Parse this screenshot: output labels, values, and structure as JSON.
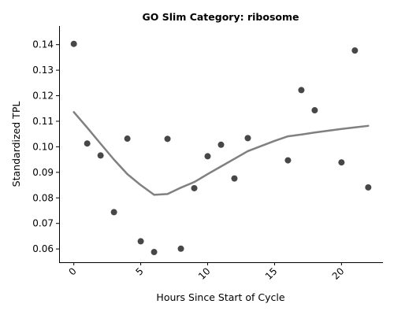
{
  "chart_data": {
    "type": "scatter",
    "title": "GO Slim Category: ribosome",
    "xlabel": "Hours Since Start of Cycle",
    "ylabel": "Standardized TPL",
    "xlim": [
      -1.1,
      23.1
    ],
    "ylim": [
      0.0548,
      0.1473
    ],
    "xticks": [
      0,
      5,
      10,
      15,
      20
    ],
    "yticks": [
      0.06,
      0.07,
      0.08,
      0.09,
      0.1,
      0.11,
      0.12,
      0.13,
      0.14
    ],
    "ytick_labels": [
      "0.06",
      "0.07",
      "0.08",
      "0.09",
      "0.10",
      "0.11",
      "0.12",
      "0.13",
      "0.14"
    ],
    "grid": false,
    "legend": "none",
    "point_color": "#333333",
    "line_color": "#808080",
    "series": [
      {
        "type": "scatter",
        "points": [
          [
            0,
            0.1403
          ],
          [
            1,
            0.1013
          ],
          [
            2,
            0.0966
          ],
          [
            3,
            0.0744
          ],
          [
            4,
            0.1032
          ],
          [
            5,
            0.063
          ],
          [
            6,
            0.0588
          ],
          [
            7,
            0.1031
          ],
          [
            8,
            0.0601
          ],
          [
            9,
            0.0838
          ],
          [
            10,
            0.0963
          ],
          [
            11,
            0.1008
          ],
          [
            12,
            0.0876
          ],
          [
            13,
            0.1034
          ],
          [
            16,
            0.0947
          ],
          [
            17,
            0.1222
          ],
          [
            18,
            0.1143
          ],
          [
            20,
            0.0939
          ],
          [
            21,
            0.1377
          ],
          [
            22,
            0.0841
          ]
        ]
      },
      {
        "type": "line",
        "points": [
          [
            0,
            0.1136
          ],
          [
            1,
            0.1075
          ],
          [
            2,
            0.1012
          ],
          [
            3,
            0.095
          ],
          [
            4,
            0.0893
          ],
          [
            5,
            0.085
          ],
          [
            6,
            0.0812
          ],
          [
            7,
            0.0815
          ],
          [
            8,
            0.084
          ],
          [
            9,
            0.0862
          ],
          [
            10,
            0.0893
          ],
          [
            11,
            0.0923
          ],
          [
            12,
            0.0953
          ],
          [
            13,
            0.0983
          ],
          [
            14,
            0.1003
          ],
          [
            15,
            0.1023
          ],
          [
            16,
            0.1041
          ],
          [
            17,
            0.1048
          ],
          [
            18,
            0.1056
          ],
          [
            19,
            0.1063
          ],
          [
            20,
            0.107
          ],
          [
            21,
            0.1076
          ],
          [
            22,
            0.1082
          ]
        ]
      }
    ]
  }
}
